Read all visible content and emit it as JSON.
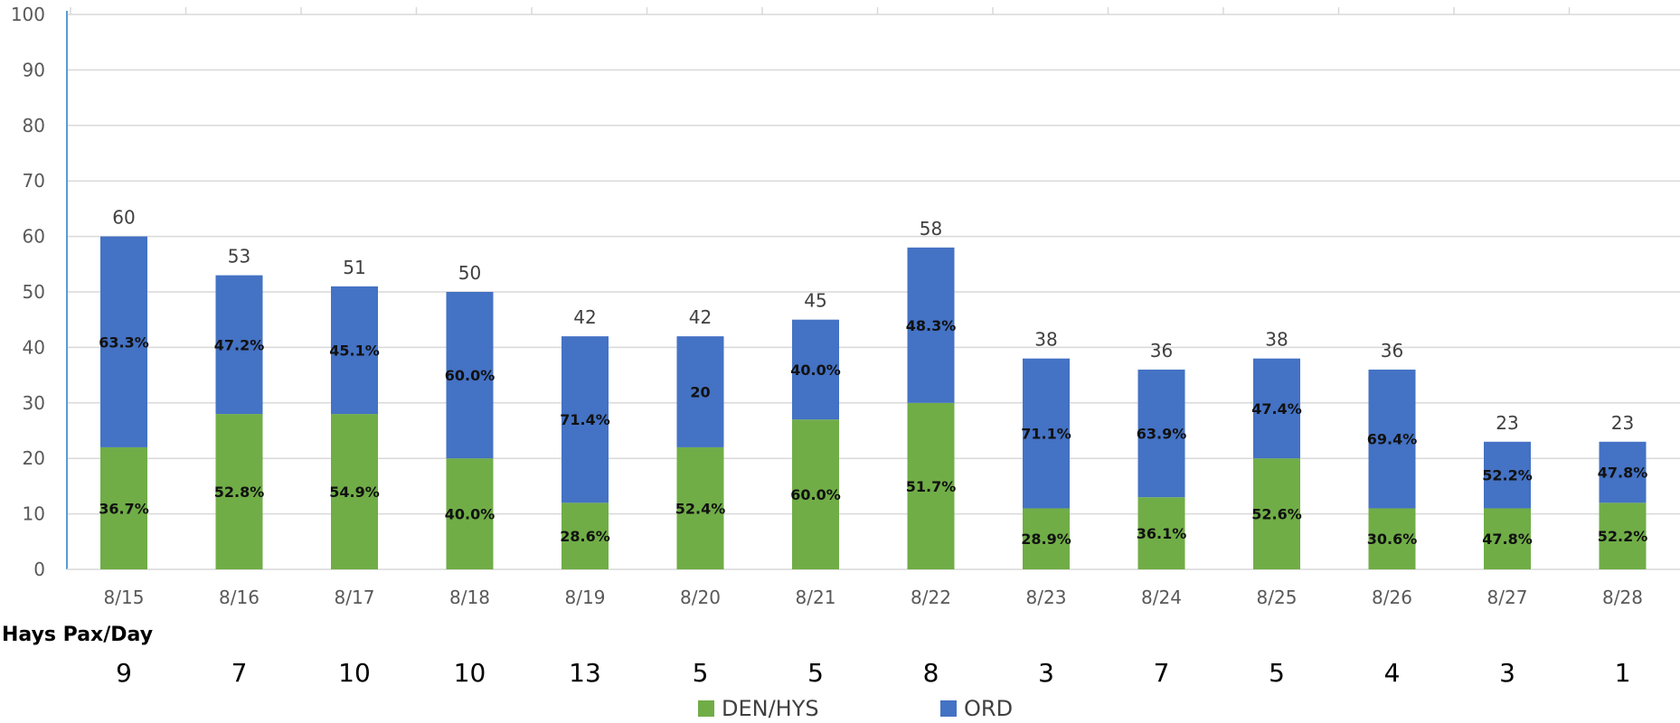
{
  "chart_data": {
    "type": "bar",
    "stacked": true,
    "categories": [
      "8/15",
      "8/16",
      "8/17",
      "8/18",
      "8/19",
      "8/20",
      "8/21",
      "8/22",
      "8/23",
      "8/24",
      "8/25",
      "8/26",
      "8/27",
      "8/28"
    ],
    "series": [
      {
        "name": "DEN/HYS",
        "color": "#70ad47",
        "values": [
          22,
          28,
          28,
          20,
          12,
          22,
          27,
          30,
          11,
          13,
          20,
          11,
          11,
          12
        ],
        "labels": [
          "36.7%",
          "52.8%",
          "54.9%",
          "40.0%",
          "28.6%",
          "52.4%",
          "60.0%",
          "51.7%",
          "28.9%",
          "36.1%",
          "52.6%",
          "30.6%",
          "47.8%",
          "52.2%"
        ]
      },
      {
        "name": "ORD",
        "color": "#4472c4",
        "values": [
          38,
          25,
          23,
          30,
          30,
          20,
          18,
          28,
          27,
          23,
          18,
          25,
          12,
          11
        ],
        "labels": [
          "63.3%",
          "47.2%",
          "45.1%",
          "60.0%",
          "71.4%",
          "20",
          "40.0%",
          "48.3%",
          "71.1%",
          "63.9%",
          "47.4%",
          "69.4%",
          "52.2%",
          "47.8%"
        ]
      }
    ],
    "totals": [
      60,
      53,
      51,
      50,
      42,
      42,
      45,
      58,
      38,
      36,
      38,
      36,
      23,
      23
    ],
    "ylim": [
      0,
      100
    ],
    "yticks": [
      0,
      10,
      20,
      30,
      40,
      50,
      60,
      70,
      80,
      90,
      100
    ],
    "grid": true,
    "legend_position": "bottom"
  },
  "pax_row": {
    "title": "Hays Pax/Day",
    "values": [
      "9",
      "7",
      "10",
      "10",
      "13",
      "5",
      "5",
      "8",
      "3",
      "7",
      "5",
      "4",
      "3",
      "1"
    ]
  },
  "legend": {
    "den_label": "DEN/HYS",
    "ord_label": "ORD"
  }
}
